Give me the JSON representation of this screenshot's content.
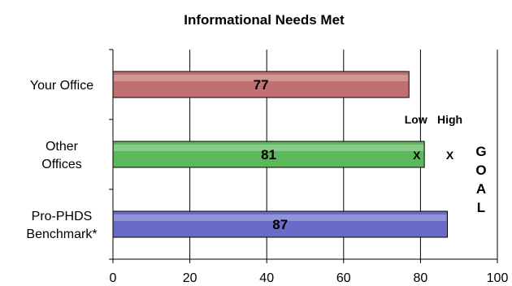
{
  "chart_data": {
    "type": "bar",
    "orientation": "horizontal",
    "title": "Informational Needs Met",
    "categories": [
      [
        "Your Office"
      ],
      [
        "Other",
        "Offices"
      ],
      [
        "Pro-PHDS",
        "Benchmark*"
      ]
    ],
    "values": [
      77,
      81,
      87
    ],
    "colors": [
      "#c07070",
      "#5cb85c",
      "#6a6ac8"
    ],
    "xlim": [
      0,
      100
    ],
    "xticks": [
      "0",
      "20",
      "40",
      "60",
      "80",
      "100"
    ],
    "grid": true,
    "goal": {
      "label_letters": [
        "G",
        "O",
        "A",
        "L"
      ],
      "low_label": "Low",
      "high_label": "High",
      "low_value": 75,
      "high_value": 87,
      "marker": "X"
    }
  }
}
